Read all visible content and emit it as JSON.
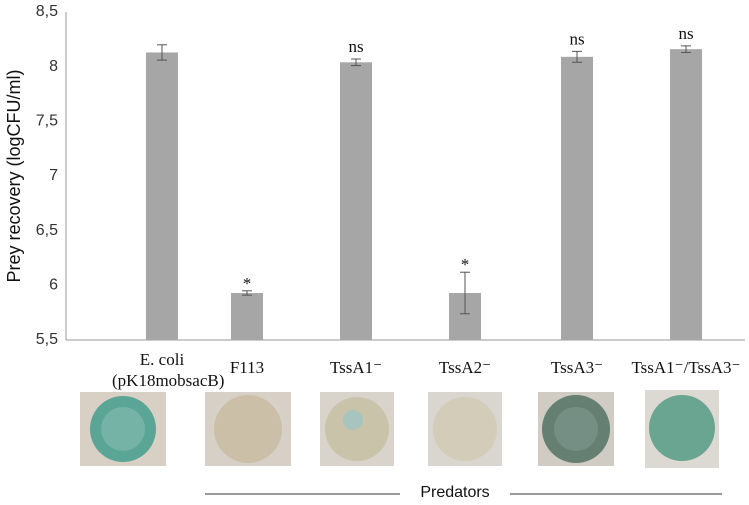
{
  "chart_data": {
    "type": "bar",
    "y_label": "Prey recovery (logCFU/ml)",
    "categories": [
      "E. coli (pK18mobsacB)",
      "F113",
      "TssA1⁻",
      "TssA2⁻",
      "TssA3⁻",
      "TssA1⁻/TssA3⁻"
    ],
    "values": [
      8.13,
      5.93,
      8.04,
      5.93,
      8.09,
      8.16
    ],
    "errors": [
      0.07,
      0.02,
      0.03,
      0.19,
      0.05,
      0.03
    ],
    "significance": [
      null,
      "*",
      "ns",
      "*",
      "ns",
      "ns"
    ],
    "color": "#a6a6a6",
    "ylim": [
      5.5,
      8.5
    ],
    "yticks": [
      {
        "value": 5.5,
        "label": "5,5"
      },
      6,
      {
        "value": 6.5,
        "label": "6,5"
      },
      7,
      {
        "value": 7.5,
        "label": "7,5"
      },
      8,
      {
        "value": 8.5,
        "label": "8,5"
      }
    ],
    "grid": false,
    "group_label": "Predators"
  }
}
